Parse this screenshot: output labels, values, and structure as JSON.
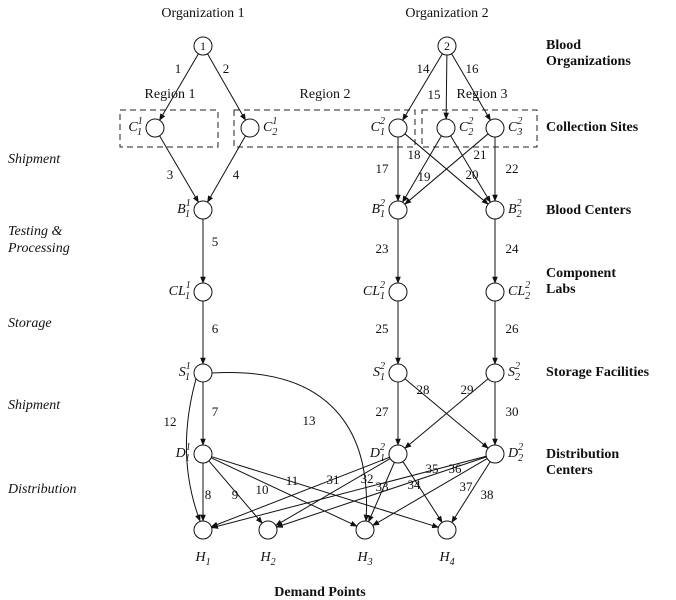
{
  "organizations": [
    {
      "name": "Organization 1",
      "node": "1"
    },
    {
      "name": "Organization 2",
      "node": "2"
    }
  ],
  "regions": [
    "Region 1",
    "Region 2",
    "Region 3"
  ],
  "tiers": [
    [
      "Blood",
      "Organizations"
    ],
    [
      "Collection Sites"
    ],
    [
      "Blood Centers"
    ],
    [
      "Component",
      "Labs"
    ],
    [
      "Storage Facilities"
    ],
    [
      "Distribution",
      "Centers"
    ]
  ],
  "stages": [
    [
      "Shipment"
    ],
    [
      "Testing &",
      "Processing"
    ],
    [
      "Storage"
    ],
    [
      "Shipment"
    ],
    [
      "Distribution"
    ]
  ],
  "footer": "Demand Points",
  "nodes": [
    {
      "symbol": "C",
      "sub": "1",
      "sup": "1"
    },
    {
      "symbol": "C",
      "sub": "2",
      "sup": "1"
    },
    {
      "symbol": "C",
      "sub": "1",
      "sup": "2"
    },
    {
      "symbol": "C",
      "sub": "2",
      "sup": "2"
    },
    {
      "symbol": "C",
      "sub": "3",
      "sup": "2"
    },
    {
      "symbol": "B",
      "sub": "1",
      "sup": "1"
    },
    {
      "symbol": "B",
      "sub": "1",
      "sup": "2"
    },
    {
      "symbol": "B",
      "sub": "2",
      "sup": "2"
    },
    {
      "symbol": "CL",
      "sub": "1",
      "sup": "1"
    },
    {
      "symbol": "CL",
      "sub": "1",
      "sup": "2"
    },
    {
      "symbol": "CL",
      "sub": "2",
      "sup": "2"
    },
    {
      "symbol": "S",
      "sub": "1",
      "sup": "1"
    },
    {
      "symbol": "S",
      "sub": "1",
      "sup": "2"
    },
    {
      "symbol": "S",
      "sub": "2",
      "sup": "2"
    },
    {
      "symbol": "D",
      "sub": "1",
      "sup": "1"
    },
    {
      "symbol": "D",
      "sub": "1",
      "sup": "2"
    },
    {
      "symbol": "D",
      "sub": "2",
      "sup": "2"
    },
    {
      "symbol": "H",
      "sub": "1"
    },
    {
      "symbol": "H",
      "sub": "2"
    },
    {
      "symbol": "H",
      "sub": "3"
    },
    {
      "symbol": "H",
      "sub": "4"
    }
  ],
  "links": [
    1,
    2,
    3,
    4,
    5,
    6,
    7,
    8,
    9,
    10,
    11,
    12,
    13,
    14,
    15,
    16,
    17,
    18,
    19,
    20,
    21,
    22,
    23,
    24,
    25,
    26,
    27,
    28,
    29,
    30,
    31,
    32,
    33,
    34,
    35,
    36,
    37,
    38
  ]
}
